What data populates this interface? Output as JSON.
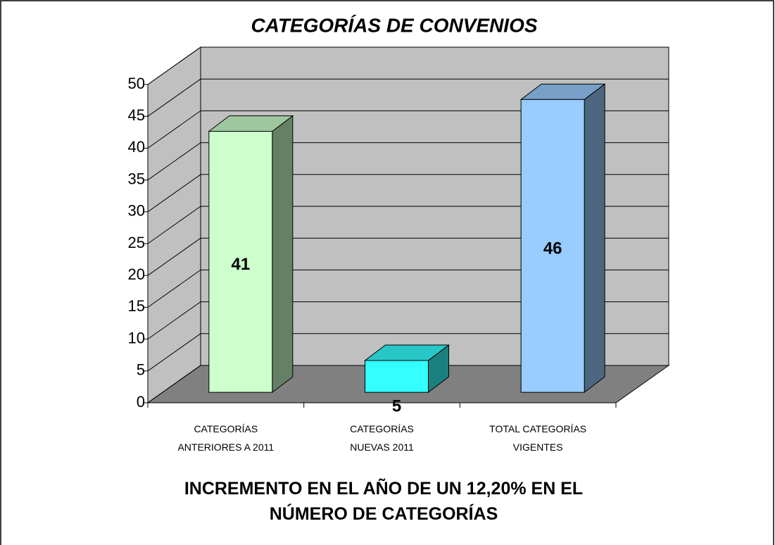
{
  "chart_data": {
    "type": "bar3d",
    "title": "CATEGORÍAS DE CONVENIOS",
    "subtitle": "INCREMENTO EN EL AÑO DE UN 12,20% EN EL NÚMERO DE CATEGORÍAS",
    "categories": [
      "CATEGORÍAS ANTERIORES A 2011",
      "CATEGORÍAS NUEVAS 2011",
      "TOTAL CATEGORÍAS VIGENTES"
    ],
    "values": [
      41,
      5,
      46
    ],
    "colors": [
      "#ccffcc",
      "#33ffff",
      "#99ccff"
    ],
    "ylim": [
      0,
      50
    ],
    "yticks": [
      0,
      5,
      10,
      15,
      20,
      25,
      30,
      35,
      40,
      45,
      50
    ],
    "grid": true
  }
}
